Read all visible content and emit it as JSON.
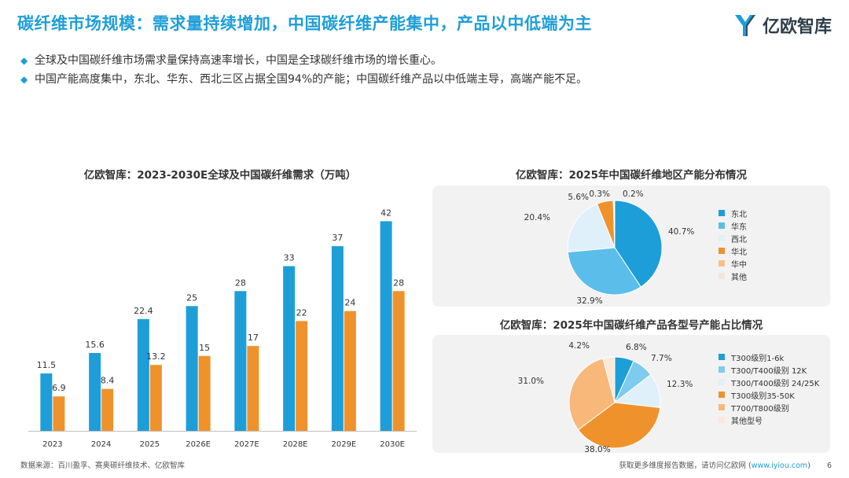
{
  "header": {
    "title": "碳纤维市场规模：需求量持续增加，中国碳纤维产能集中，产品以中低端为主",
    "logo_text": "亿欧智库"
  },
  "bullets": [
    "全球及中国碳纤维市场需求量保持高速率增长，中国是全球碳纤维市场的增长重心。",
    "中国产能高度集中，东北、华东、西北三区占据全国94%的产能；中国碳纤维产品以中低端主导，高端产能不足。"
  ],
  "footer": {
    "source": "数据来源：百川盈孚、赛奥碳纤维技术、亿欧智库",
    "note_prefix": "获取更多维度报告数据，请访问亿欧网 (",
    "note_site": "www.iyiou.com",
    "note_suffix": ")",
    "page_number": "6"
  },
  "colors": {
    "accent": "#1e9ed8",
    "orange": "#f0922b"
  },
  "chart_data": [
    {
      "type": "bar",
      "title": "亿欧智库：2023-2030E全球及中国碳纤维需求（万吨）",
      "categories": [
        "2023",
        "2024",
        "2025",
        "2026E",
        "2027E",
        "2028E",
        "2029E",
        "2030E"
      ],
      "series": [
        {
          "values": [
            11.5,
            15.6,
            22.4,
            25,
            28,
            33,
            37,
            42
          ],
          "color": "#1e9ed8"
        },
        {
          "values": [
            6.9,
            8.4,
            13.2,
            15,
            17,
            22,
            24,
            28
          ],
          "color": "#f0922b"
        }
      ],
      "ylim": [
        0,
        46
      ]
    },
    {
      "type": "pie",
      "title": "亿欧智库：2025年中国碳纤维地区产能分布情况",
      "labels": [
        "东北",
        "华东",
        "西北",
        "华北",
        "华中",
        "其他"
      ],
      "values": [
        40.7,
        32.9,
        20.4,
        5.6,
        0.3,
        0.2
      ],
      "value_labels": [
        "40.7%",
        "32.9%",
        "20.4%",
        "5.6%",
        "0.3%",
        "0.2%"
      ],
      "colors": [
        "#1e9ed8",
        "#5bbde9",
        "#dff0fa",
        "#f0922b",
        "#f9c08a",
        "#f3e6d8"
      ],
      "legend": "right"
    },
    {
      "type": "pie",
      "title": "亿欧智库：2025年中国碳纤维产品各型号产能占比情况",
      "labels": [
        "T300级别1-6k",
        "T300/T400级别 12K",
        "T300/T400级别 24/25K",
        "T300级别35-50K",
        "T700/T800级别",
        "其他型号"
      ],
      "values": [
        6.8,
        7.7,
        12.3,
        38.0,
        31.0,
        4.2
      ],
      "value_labels": [
        "6.8%",
        "7.7%",
        "12.3%",
        "38.0%",
        "31.0%",
        "4.2%"
      ],
      "colors": [
        "#1e9ed8",
        "#7dcbee",
        "#dff0fa",
        "#f0922b",
        "#f7b87a",
        "#fbe9d8"
      ],
      "legend": "right"
    }
  ]
}
